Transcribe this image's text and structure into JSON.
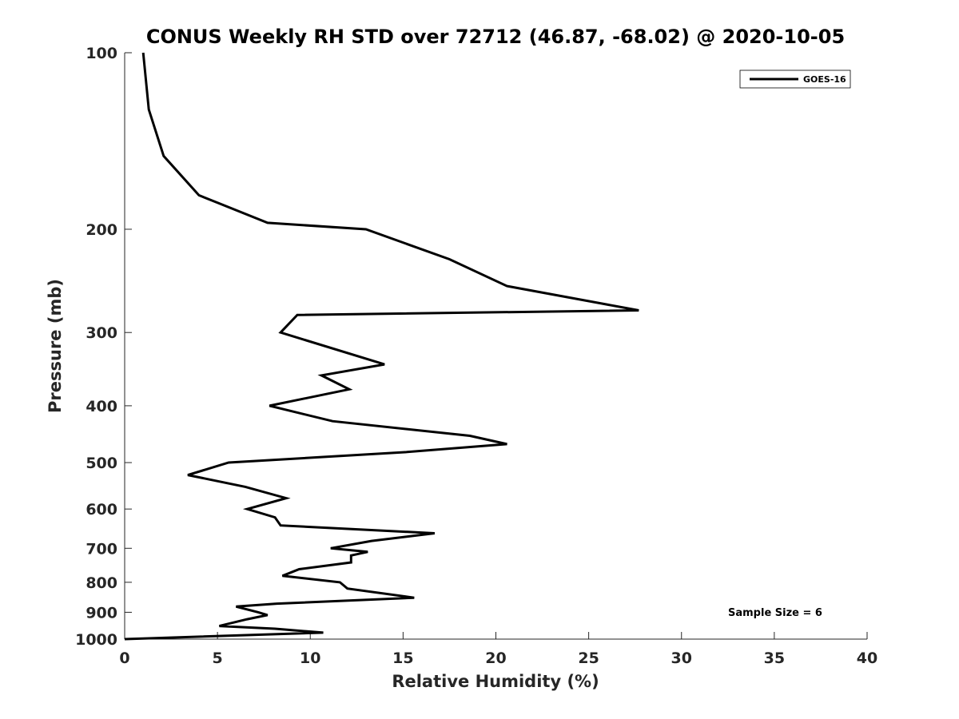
{
  "chart_data": {
    "type": "line",
    "title": "CONUS Weekly RH STD over 72712 (46.87, -68.02) @ 2020-10-05",
    "xlabel": "Relative Humidity (%)",
    "ylabel": "Pressure (mb)",
    "xlim": [
      0,
      40
    ],
    "ylim": [
      100,
      1000
    ],
    "y_scale": "log",
    "y_reversed": true,
    "x_ticks": [
      0,
      5,
      10,
      15,
      20,
      25,
      30,
      35,
      40
    ],
    "y_ticks": [
      100,
      200,
      300,
      400,
      500,
      600,
      700,
      800,
      900,
      1000
    ],
    "grid": false,
    "legend_position": "top-right",
    "series": [
      {
        "name": "GOES-16",
        "color": "#000000",
        "points": [
          [
            1.0,
            100
          ],
          [
            1.3,
            125
          ],
          [
            2.1,
            150
          ],
          [
            4.0,
            175
          ],
          [
            7.7,
            195
          ],
          [
            13.0,
            200
          ],
          [
            17.5,
            225
          ],
          [
            20.6,
            250
          ],
          [
            27.7,
            275
          ],
          [
            9.3,
            280
          ],
          [
            8.4,
            300
          ],
          [
            14.0,
            340
          ],
          [
            10.6,
            355
          ],
          [
            12.1,
            375
          ],
          [
            7.8,
            400
          ],
          [
            11.2,
            425
          ],
          [
            18.6,
            450
          ],
          [
            20.6,
            465
          ],
          [
            15.1,
            480
          ],
          [
            5.6,
            500
          ],
          [
            3.4,
            525
          ],
          [
            6.5,
            550
          ],
          [
            8.7,
            575
          ],
          [
            6.6,
            600
          ],
          [
            8.1,
            620
          ],
          [
            8.4,
            640
          ],
          [
            16.7,
            660
          ],
          [
            13.3,
            680
          ],
          [
            11.1,
            700
          ],
          [
            13.1,
            710
          ],
          [
            12.2,
            720
          ],
          [
            12.2,
            740
          ],
          [
            9.4,
            760
          ],
          [
            8.5,
            780
          ],
          [
            11.6,
            800
          ],
          [
            12.0,
            820
          ],
          [
            15.6,
            850
          ],
          [
            8.2,
            870
          ],
          [
            6.0,
            880
          ],
          [
            7.2,
            900
          ],
          [
            7.7,
            910
          ],
          [
            6.6,
            925
          ],
          [
            5.1,
            950
          ],
          [
            8.1,
            960
          ],
          [
            10.7,
            975
          ],
          [
            0.0,
            1000
          ]
        ]
      }
    ],
    "annotation": "Sample Size = 6"
  }
}
